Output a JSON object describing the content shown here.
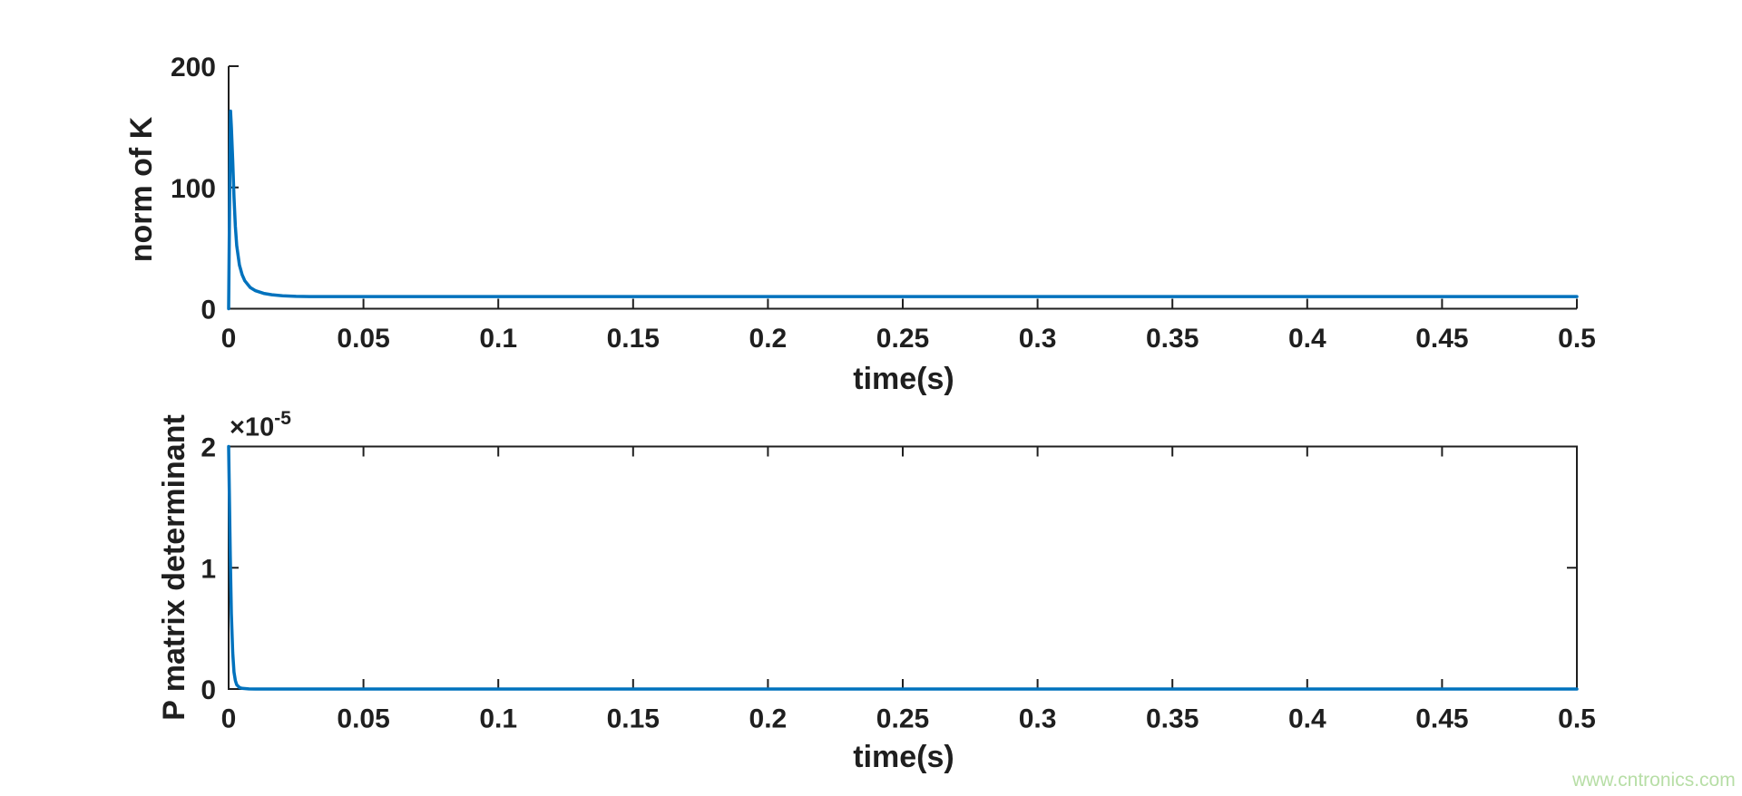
{
  "figure": {
    "background": "#ffffff",
    "axes_color": "#1f1f1f",
    "tick_label_color": "#1f1f1f"
  },
  "watermark": {
    "text": "www.cntronics.com",
    "color": "#b7dea6"
  },
  "chart_data": [
    {
      "type": "line",
      "title": "",
      "xlabel": "time(s)",
      "ylabel": "norm of K",
      "xlim": [
        0,
        0.5
      ],
      "ylim": [
        0,
        200
      ],
      "xticks": [
        0,
        0.05,
        0.1,
        0.15,
        0.2,
        0.25,
        0.3,
        0.35,
        0.4,
        0.45,
        0.5
      ],
      "xtick_labels": [
        "0",
        "0.05",
        "0.1",
        "0.15",
        "0.2",
        "0.25",
        "0.3",
        "0.35",
        "0.4",
        "0.45",
        "0.5"
      ],
      "yticks": [
        0,
        100,
        200
      ],
      "ytick_labels": [
        "0",
        "100",
        "200"
      ],
      "grid": false,
      "box": "off",
      "legend": "none",
      "line_color": "#0072BD",
      "line_width": 3.5,
      "description": "Gain norm spikes to ~163 just after t=0 then decays to a steady value of ~10",
      "series": [
        {
          "name": "norm of K",
          "x": [
            0,
            0.0004,
            0.0007,
            0.001,
            0.0015,
            0.002,
            0.0025,
            0.003,
            0.004,
            0.005,
            0.006,
            0.008,
            0.01,
            0.013,
            0.016,
            0.02,
            0.025,
            0.03,
            0.04,
            0.05,
            0.075,
            0.1,
            0.15,
            0.2,
            0.25,
            0.3,
            0.35,
            0.4,
            0.45,
            0.5
          ],
          "y": [
            0,
            100,
            163,
            150,
            122,
            92,
            68,
            52,
            36,
            28,
            23,
            17.5,
            14.8,
            12.6,
            11.5,
            10.7,
            10.2,
            10.05,
            10,
            10,
            10,
            10,
            10,
            10,
            10,
            10,
            10,
            10,
            10,
            10
          ]
        }
      ]
    },
    {
      "type": "line",
      "title": "",
      "xlabel": "time(s)",
      "ylabel": "P matrix determinant",
      "xlim": [
        0,
        0.5
      ],
      "ylim": [
        0,
        2e-05
      ],
      "xticks": [
        0,
        0.05,
        0.1,
        0.15,
        0.2,
        0.25,
        0.3,
        0.35,
        0.4,
        0.45,
        0.5
      ],
      "xtick_labels": [
        "0",
        "0.05",
        "0.1",
        "0.15",
        "0.2",
        "0.25",
        "0.3",
        "0.35",
        "0.4",
        "0.45",
        "0.5"
      ],
      "yticks": [
        0,
        1e-05,
        2e-05
      ],
      "ytick_labels": [
        "0",
        "1",
        "2"
      ],
      "y_exponent_base": "×10",
      "y_exponent_power": "-5",
      "grid": false,
      "box": "on",
      "legend": "none",
      "line_color": "#0072BD",
      "line_width": 3.5,
      "description": "Determinant starts at 2e-5 at t=0 and decays to ~0 within ~0.005 s",
      "series": [
        {
          "name": "P matrix determinant",
          "x": [
            0,
            0.0003,
            0.0006,
            0.001,
            0.0015,
            0.002,
            0.0025,
            0.003,
            0.004,
            0.005,
            0.0075,
            0.01,
            0.05,
            0.1,
            0.15,
            0.2,
            0.25,
            0.3,
            0.35,
            0.4,
            0.45,
            0.5
          ],
          "y": [
            2e-05,
            1.55e-05,
            1.1e-05,
            6.2e-06,
            3e-06,
            1.4e-06,
            7e-07,
            3.5e-07,
            1.2e-07,
            5e-08,
            1e-08,
            0,
            0,
            0,
            0,
            0,
            0,
            0,
            0,
            0,
            0,
            0
          ]
        }
      ]
    }
  ]
}
